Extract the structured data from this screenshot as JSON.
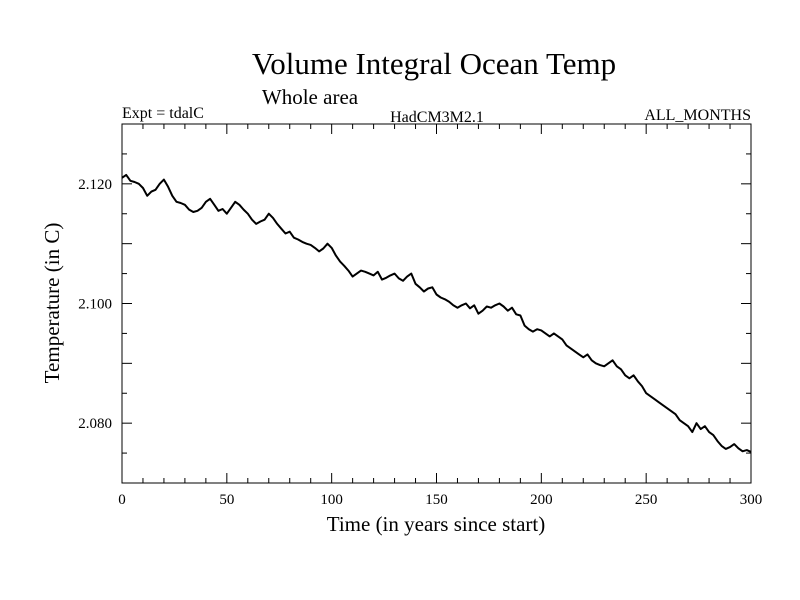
{
  "chart_data": {
    "type": "line",
    "title": "Volume Integral Ocean Temp",
    "subtitle": "Whole area",
    "expt_label": "Expt = tdalC",
    "model_label": "HadCM3M2.1",
    "months_label": "ALL_MONTHS",
    "xlabel": "Time (in years since start)",
    "ylabel": "Temperature (in C)",
    "xlim": [
      0,
      300
    ],
    "ylim": [
      2.07,
      2.13
    ],
    "xticks": [
      0,
      50,
      100,
      150,
      200,
      250,
      300
    ],
    "xtick_labels": [
      "0",
      "50",
      "100",
      "150",
      "200",
      "250",
      "300"
    ],
    "yticks": [
      2.08,
      2.1,
      2.12
    ],
    "ytick_labels": [
      "2.080",
      "2.100",
      "2.120"
    ],
    "grid": false,
    "series": [
      {
        "name": "Volume Integral Ocean Temp",
        "x": [
          0,
          2,
          4,
          6,
          8,
          10,
          12,
          14,
          16,
          18,
          20,
          22,
          24,
          26,
          28,
          30,
          32,
          34,
          36,
          38,
          40,
          42,
          44,
          46,
          48,
          50,
          52,
          54,
          56,
          58,
          60,
          62,
          64,
          66,
          68,
          70,
          72,
          74,
          76,
          78,
          80,
          82,
          84,
          86,
          88,
          90,
          92,
          94,
          96,
          98,
          100,
          102,
          104,
          106,
          108,
          110,
          112,
          114,
          116,
          118,
          120,
          122,
          124,
          126,
          128,
          130,
          132,
          134,
          136,
          138,
          140,
          142,
          144,
          146,
          148,
          150,
          152,
          154,
          156,
          158,
          160,
          162,
          164,
          166,
          168,
          170,
          172,
          174,
          176,
          178,
          180,
          182,
          184,
          186,
          188,
          190,
          192,
          194,
          196,
          198,
          200,
          202,
          204,
          206,
          208,
          210,
          212,
          214,
          216,
          218,
          220,
          222,
          224,
          226,
          228,
          230,
          232,
          234,
          236,
          238,
          240,
          242,
          244,
          246,
          248,
          250,
          252,
          254,
          256,
          258,
          260,
          262,
          264,
          266,
          268,
          270,
          272,
          274,
          276,
          278,
          280,
          282,
          284,
          286,
          288,
          290,
          292,
          294,
          296,
          298,
          300
        ],
        "values": [
          2.121,
          2.1215,
          2.1205,
          2.1203,
          2.12,
          2.1193,
          2.118,
          2.1187,
          2.119,
          2.12,
          2.1207,
          2.1195,
          2.118,
          2.117,
          2.1168,
          2.1165,
          2.1157,
          2.1153,
          2.1155,
          2.116,
          2.117,
          2.1175,
          2.1165,
          2.1155,
          2.1158,
          2.115,
          2.116,
          2.117,
          2.1165,
          2.1157,
          2.115,
          2.114,
          2.1133,
          2.1137,
          2.114,
          2.115,
          2.1143,
          2.1133,
          2.1125,
          2.1117,
          2.112,
          2.111,
          2.1107,
          2.1103,
          2.11,
          2.1098,
          2.1093,
          2.1087,
          2.1092,
          2.11,
          2.1093,
          2.108,
          2.107,
          2.1063,
          2.1055,
          2.1045,
          2.105,
          2.1055,
          2.1053,
          2.105,
          2.1047,
          2.1053,
          2.104,
          2.1043,
          2.1047,
          2.105,
          2.1042,
          2.1038,
          2.1045,
          2.105,
          2.1033,
          2.1027,
          2.102,
          2.1025,
          2.1027,
          2.1015,
          2.101,
          2.1007,
          2.1003,
          2.0997,
          2.0993,
          2.0997,
          2.1,
          2.0992,
          2.0997,
          2.0983,
          2.0988,
          2.0995,
          2.0993,
          2.0997,
          2.1,
          2.0995,
          2.0988,
          2.0993,
          2.0982,
          2.098,
          2.0963,
          2.0957,
          2.0953,
          2.0957,
          2.0955,
          2.095,
          2.0945,
          2.095,
          2.0945,
          2.094,
          2.093,
          2.0925,
          2.092,
          2.0915,
          2.091,
          2.0915,
          2.0905,
          2.09,
          2.0897,
          2.0895,
          2.09,
          2.0905,
          2.0895,
          2.089,
          2.088,
          2.0875,
          2.088,
          2.087,
          2.0862,
          2.085,
          2.0845,
          2.084,
          2.0835,
          2.083,
          2.0825,
          2.082,
          2.0815,
          2.0805,
          2.08,
          2.0795,
          2.0785,
          2.08,
          2.079,
          2.0795,
          2.0785,
          2.078,
          2.077,
          2.0762,
          2.0757,
          2.076,
          2.0765,
          2.0758,
          2.0753,
          2.0755,
          2.0752
        ]
      }
    ]
  }
}
